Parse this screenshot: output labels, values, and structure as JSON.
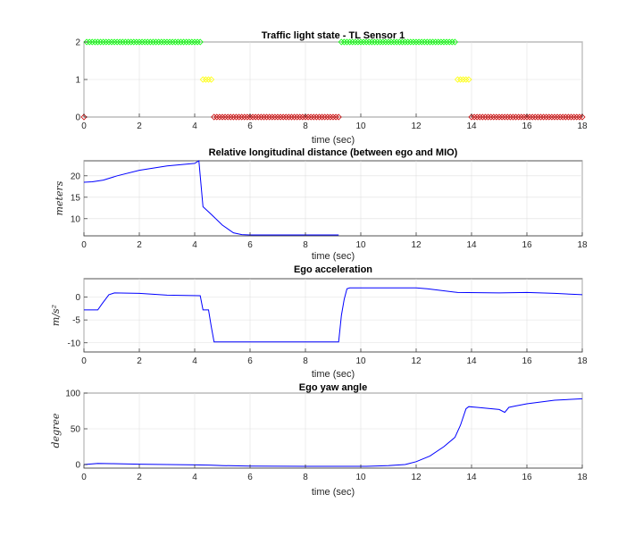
{
  "chart_data": [
    {
      "type": "scatter",
      "title": "Traffic light state - TL Sensor 1",
      "xlabel": "time (sec)",
      "ylabel": "",
      "xlim": [
        0,
        18
      ],
      "ylim": [
        0,
        2
      ],
      "xticks": [
        0,
        2,
        4,
        6,
        8,
        10,
        12,
        14,
        16,
        18
      ],
      "yticks": [
        0,
        1,
        2
      ],
      "grid": true,
      "marker": "diamond",
      "series": [
        {
          "color": "#00ff00",
          "y": 2,
          "x_start": 0.1,
          "x_end": 4.2,
          "step": 0.1
        },
        {
          "color": "#ffff00",
          "y": 1,
          "x_start": 4.3,
          "x_end": 4.6,
          "step": 0.1
        },
        {
          "color": "#cc0000",
          "y": 0,
          "x_start": 4.7,
          "x_end": 9.2,
          "step": 0.1
        },
        {
          "color": "#00ff00",
          "y": 2,
          "x_start": 9.3,
          "x_end": 13.4,
          "step": 0.1
        },
        {
          "color": "#ffff00",
          "y": 1,
          "x_start": 13.5,
          "x_end": 13.9,
          "step": 0.1
        },
        {
          "color": "#cc0000",
          "y": 0,
          "x_start": 14.0,
          "x_end": 18.0,
          "step": 0.1
        },
        {
          "color": "#cc0000",
          "y": 0,
          "x_start": 0.0,
          "x_end": 0.0,
          "step": 0.1
        }
      ]
    },
    {
      "type": "line",
      "title": "Relative longitudinal distance (between ego and MIO)",
      "xlabel": "time (sec)",
      "ylabel": "meters",
      "xlim": [
        0,
        18
      ],
      "ylim": [
        6,
        23.5
      ],
      "xticks": [
        0,
        2,
        4,
        6,
        8,
        10,
        12,
        14,
        16,
        18
      ],
      "yticks": [
        10,
        15,
        20
      ],
      "grid": true,
      "series": [
        {
          "color": "#0000ff",
          "points": [
            [
              0,
              18.5
            ],
            [
              0.3,
              18.6
            ],
            [
              0.7,
              19.0
            ],
            [
              1.2,
              20.0
            ],
            [
              2,
              21.3
            ],
            [
              3,
              22.3
            ],
            [
              4.0,
              22.9
            ],
            [
              4.15,
              23.5
            ],
            [
              4.2,
              20.0
            ],
            [
              4.3,
              12.8
            ],
            [
              4.6,
              11.0
            ],
            [
              5.0,
              8.5
            ],
            [
              5.4,
              6.7
            ],
            [
              5.7,
              6.3
            ],
            [
              6.0,
              6.2
            ],
            [
              7.0,
              6.2
            ],
            [
              8.0,
              6.2
            ],
            [
              9.2,
              6.2
            ]
          ]
        }
      ]
    },
    {
      "type": "line",
      "title": "Ego acceleration",
      "xlabel": "time (sec)",
      "ylabel": "m/s²",
      "xlim": [
        0,
        18
      ],
      "ylim": [
        -12,
        4
      ],
      "xticks": [
        0,
        2,
        4,
        6,
        8,
        10,
        12,
        14,
        16,
        18
      ],
      "yticks": [
        -10,
        -5,
        0
      ],
      "grid": true,
      "series": [
        {
          "color": "#0000ff",
          "points": [
            [
              0,
              -2.8
            ],
            [
              0.5,
              -2.8
            ],
            [
              0.65,
              -1.5
            ],
            [
              0.9,
              0.5
            ],
            [
              1.1,
              0.9
            ],
            [
              2,
              0.8
            ],
            [
              3,
              0.4
            ],
            [
              4.2,
              0.3
            ],
            [
              4.3,
              -2.8
            ],
            [
              4.5,
              -2.8
            ],
            [
              4.6,
              -6.5
            ],
            [
              4.7,
              -9.8
            ],
            [
              5,
              -9.8
            ],
            [
              7,
              -9.8
            ],
            [
              9.2,
              -9.8
            ],
            [
              9.3,
              -4.0
            ],
            [
              9.4,
              -0.5
            ],
            [
              9.5,
              1.8
            ],
            [
              9.6,
              2.0
            ],
            [
              12,
              2.0
            ],
            [
              12.4,
              1.8
            ],
            [
              13.5,
              1.0
            ],
            [
              15,
              0.9
            ],
            [
              16,
              1.0
            ],
            [
              17,
              0.8
            ],
            [
              18,
              0.5
            ]
          ]
        }
      ]
    },
    {
      "type": "line",
      "title": "Ego yaw angle",
      "xlabel": "time (sec)",
      "ylabel": "degree",
      "xlim": [
        0,
        18
      ],
      "ylim": [
        -5,
        100
      ],
      "xticks": [
        0,
        2,
        4,
        6,
        8,
        10,
        12,
        14,
        16,
        18
      ],
      "yticks": [
        0,
        50,
        100
      ],
      "grid": true,
      "series": [
        {
          "color": "#0000ff",
          "points": [
            [
              0,
              0
            ],
            [
              0.5,
              1.5
            ],
            [
              1,
              1.2
            ],
            [
              2,
              0.5
            ],
            [
              4,
              -0.5
            ],
            [
              4.6,
              -1
            ],
            [
              5,
              -1.5
            ],
            [
              6,
              -2.2
            ],
            [
              8,
              -2.5
            ],
            [
              9.5,
              -2.5
            ],
            [
              10.2,
              -2.5
            ],
            [
              11,
              -1.5
            ],
            [
              11.6,
              0
            ],
            [
              12,
              4
            ],
            [
              12.5,
              12
            ],
            [
              13,
              25
            ],
            [
              13.4,
              38
            ],
            [
              13.6,
              55
            ],
            [
              13.8,
              78
            ],
            [
              13.9,
              81
            ],
            [
              14.2,
              80
            ],
            [
              15.0,
              77
            ],
            [
              15.2,
              73
            ],
            [
              15.35,
              80
            ],
            [
              15.6,
              82
            ],
            [
              16.0,
              85
            ],
            [
              17,
              90
            ],
            [
              18,
              92
            ]
          ]
        }
      ]
    }
  ]
}
